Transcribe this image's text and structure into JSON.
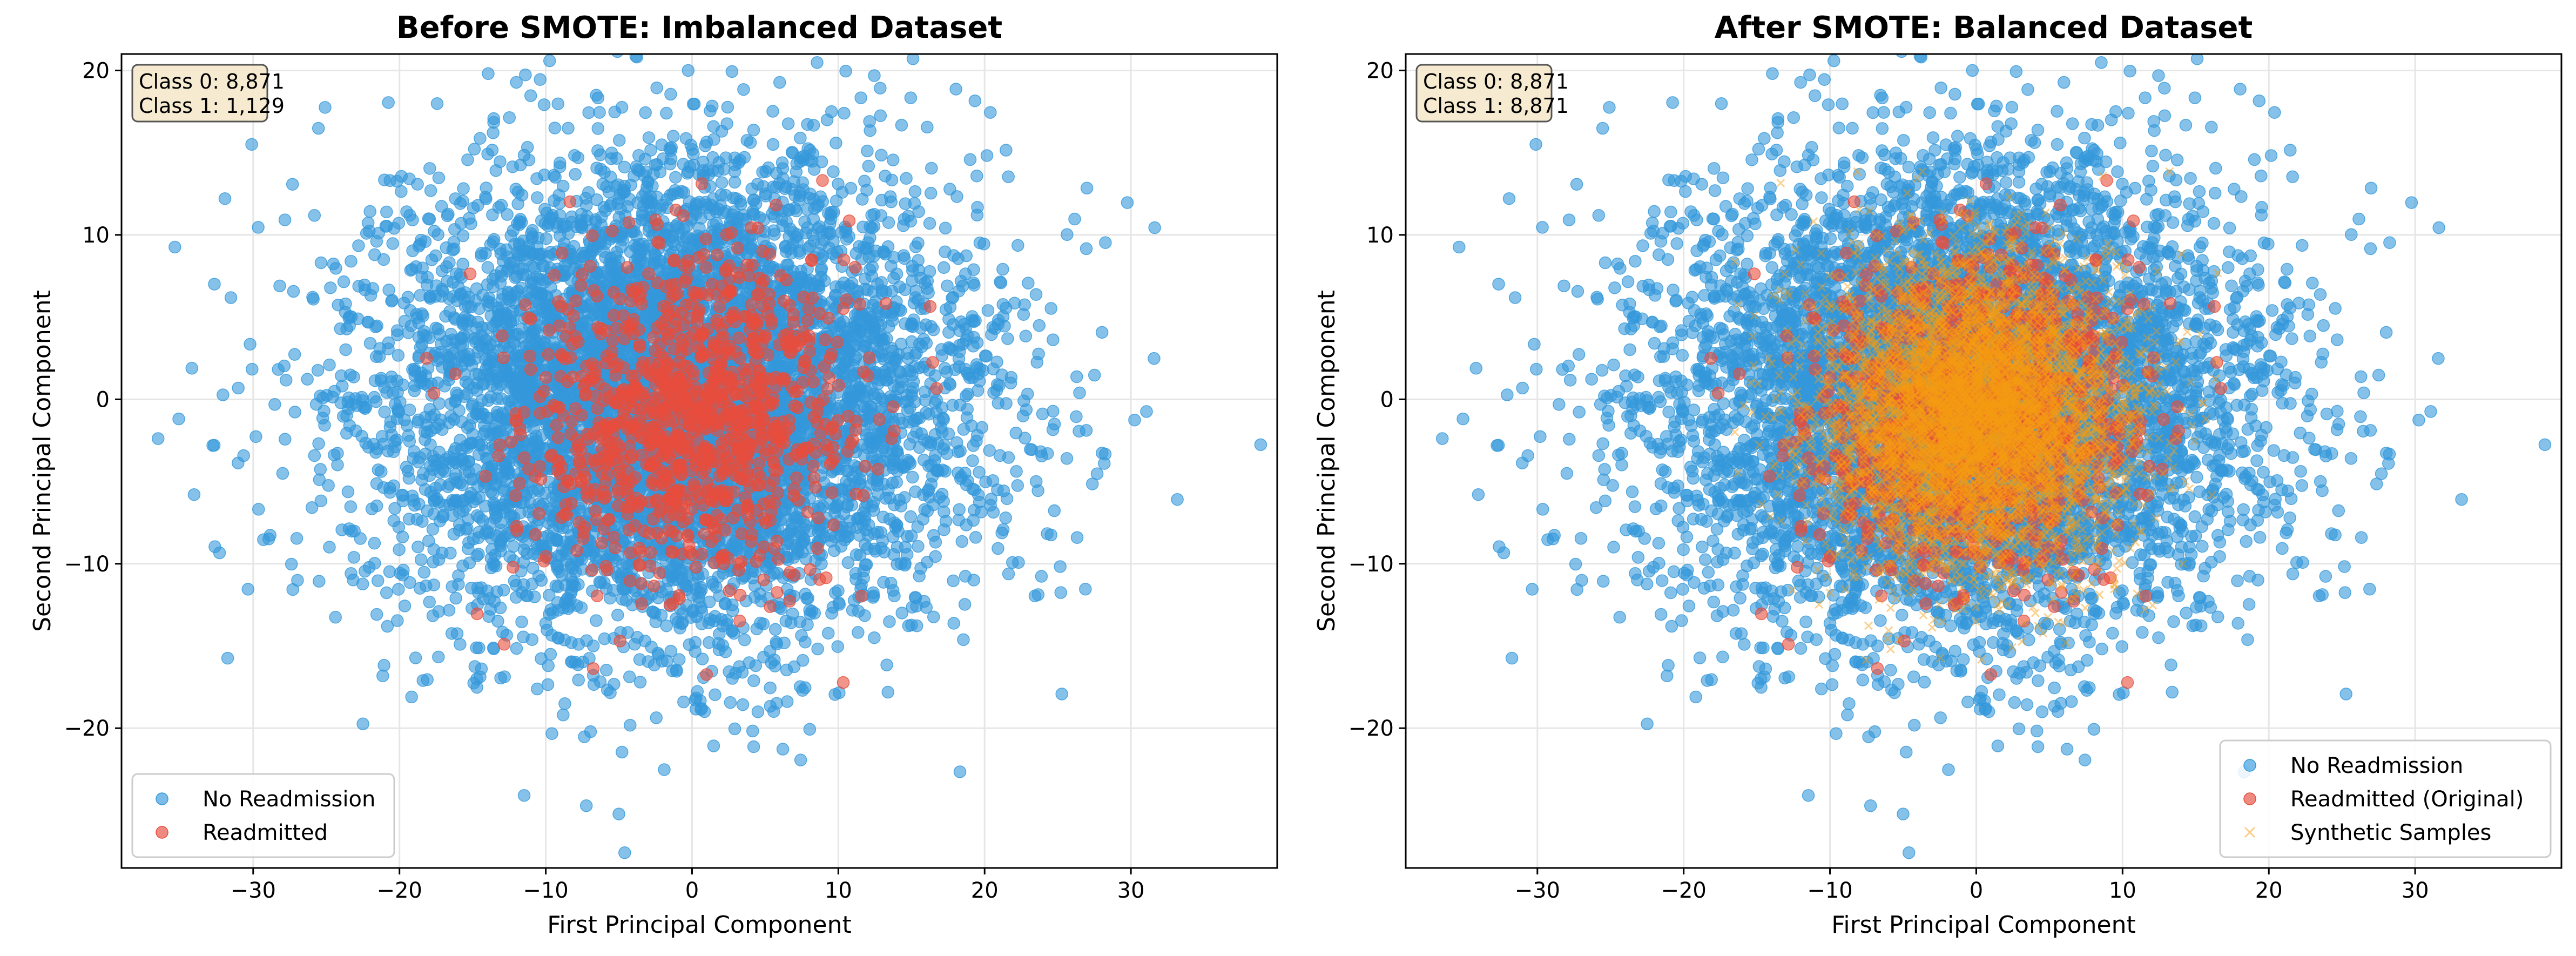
{
  "chart_data": [
    {
      "type": "scatter",
      "title": "Before SMOTE: Imbalanced Dataset",
      "xlabel": "First Principal Component",
      "ylabel": "Second Principal Component",
      "xlim": [
        -39,
        40
      ],
      "ylim": [
        -28.5,
        21
      ],
      "xticks": [
        -30,
        -20,
        -10,
        0,
        10,
        20,
        30
      ],
      "xtick_labels": [
        "−30",
        "−20",
        "−10",
        "0",
        "10",
        "20",
        "30"
      ],
      "yticks": [
        -20,
        -10,
        0,
        10,
        20
      ],
      "ytick_labels": [
        "−20",
        "−10",
        "0",
        "10",
        "20"
      ],
      "grid": true,
      "legend_position": "lower-left",
      "annotation": [
        "Class 0: 8,871",
        "Class 1: 1,129"
      ],
      "series": [
        {
          "name": "No Readmission",
          "color": "#3498db",
          "marker": "circle",
          "count": 8871,
          "distribution": {
            "center": [
              -1,
              0
            ],
            "std": [
              10,
              7
            ]
          }
        },
        {
          "name": "Readmitted",
          "color": "#e74c3c",
          "marker": "circle",
          "count": 1129,
          "distribution": {
            "center": [
              0,
              -1
            ],
            "std": [
              5.5,
              5
            ]
          }
        }
      ],
      "legend": [
        "No Readmission",
        "Readmitted"
      ]
    },
    {
      "type": "scatter",
      "title": "After SMOTE: Balanced Dataset",
      "xlabel": "First Principal Component",
      "ylabel": "Second Principal Component",
      "xlim": [
        -39,
        40
      ],
      "ylim": [
        -28.5,
        21
      ],
      "xticks": [
        -30,
        -20,
        -10,
        0,
        10,
        20,
        30
      ],
      "xtick_labels": [
        "−30",
        "−20",
        "−10",
        "0",
        "10",
        "20",
        "30"
      ],
      "yticks": [
        -20,
        -10,
        0,
        10,
        20
      ],
      "ytick_labels": [
        "−20",
        "−10",
        "0",
        "10",
        "20"
      ],
      "grid": true,
      "legend_position": "lower-right",
      "annotation": [
        "Class 0: 8,871",
        "Class 1: 8,871"
      ],
      "series": [
        {
          "name": "No Readmission",
          "color": "#3498db",
          "marker": "circle",
          "count": 8871,
          "distribution": {
            "center": [
              -1,
              0
            ],
            "std": [
              10,
              7
            ]
          }
        },
        {
          "name": "Readmitted (Original)",
          "color": "#e74c3c",
          "marker": "circle",
          "count": 1129,
          "distribution": {
            "center": [
              0,
              -1
            ],
            "std": [
              5.5,
              5
            ]
          }
        },
        {
          "name": "Synthetic Samples",
          "color": "#f39c12",
          "marker": "x",
          "count": 7742,
          "distribution": {
            "center": [
              0,
              -1
            ],
            "std": [
              5,
              4.5
            ]
          }
        }
      ],
      "legend": [
        "No Readmission",
        "Readmitted (Original)",
        "Synthetic Samples"
      ]
    }
  ]
}
